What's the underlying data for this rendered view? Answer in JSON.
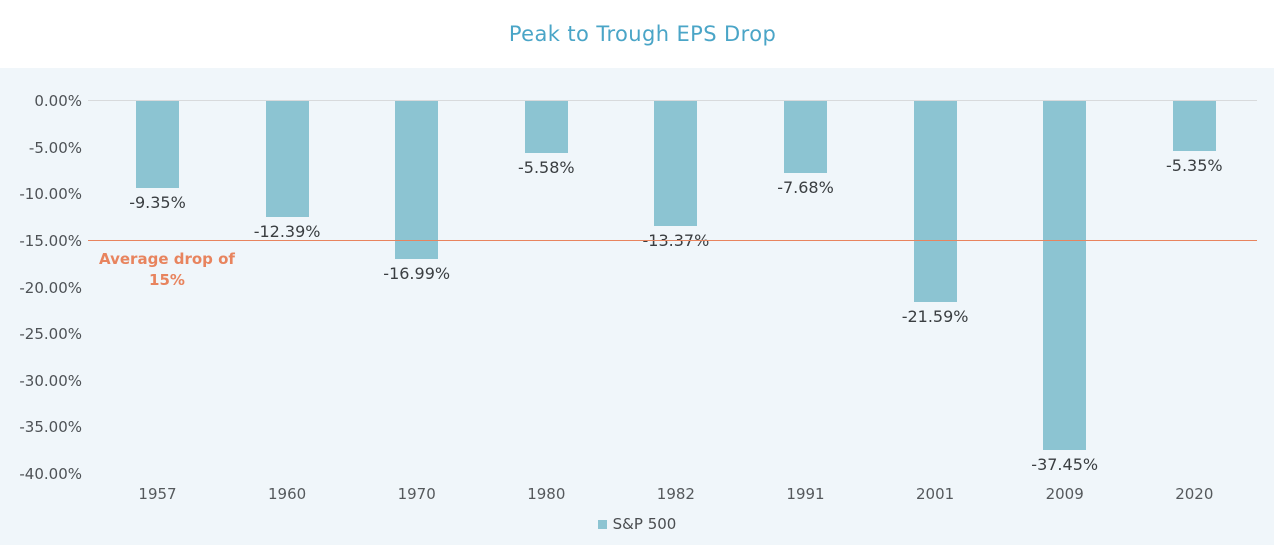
{
  "header": {
    "title": "Peak to Trough EPS Drop"
  },
  "legend": {
    "label": "S&P 500"
  },
  "annotation": {
    "line1": "Average drop of",
    "line2": "15%"
  },
  "colors": {
    "title": "#4aa5c7",
    "bar": "#8cc4d2",
    "avg_line": "#e8845e",
    "panel_bg": "#f0f6fa",
    "grid": "#d8dadc"
  },
  "chart_data": {
    "type": "bar",
    "title": "Peak to Trough EPS Drop",
    "categories": [
      "1957",
      "1960",
      "1970",
      "1980",
      "1982",
      "1991",
      "2001",
      "2009",
      "2020"
    ],
    "series": [
      {
        "name": "S&P 500",
        "values": [
          -9.35,
          -12.39,
          -16.99,
          -5.58,
          -13.37,
          -7.68,
          -21.59,
          -37.45,
          -5.35
        ]
      }
    ],
    "value_labels": [
      "-9.35%",
      "-12.39%",
      "-16.99%",
      "-5.58%",
      "-13.37%",
      "-7.68%",
      "-21.59%",
      "-37.45%",
      "-5.35%"
    ],
    "y_ticks": [
      "0.00%",
      "-5.00%",
      "-10.00%",
      "-15.00%",
      "-20.00%",
      "-25.00%",
      "-30.00%",
      "-35.00%",
      "-40.00%"
    ],
    "xlabel": "",
    "ylabel": "",
    "ylim": [
      -40,
      0
    ],
    "avg_line_value": -15,
    "avg_line_label": "Average drop of 15%",
    "legend_position": "bottom",
    "grid": "zero-line-only"
  }
}
